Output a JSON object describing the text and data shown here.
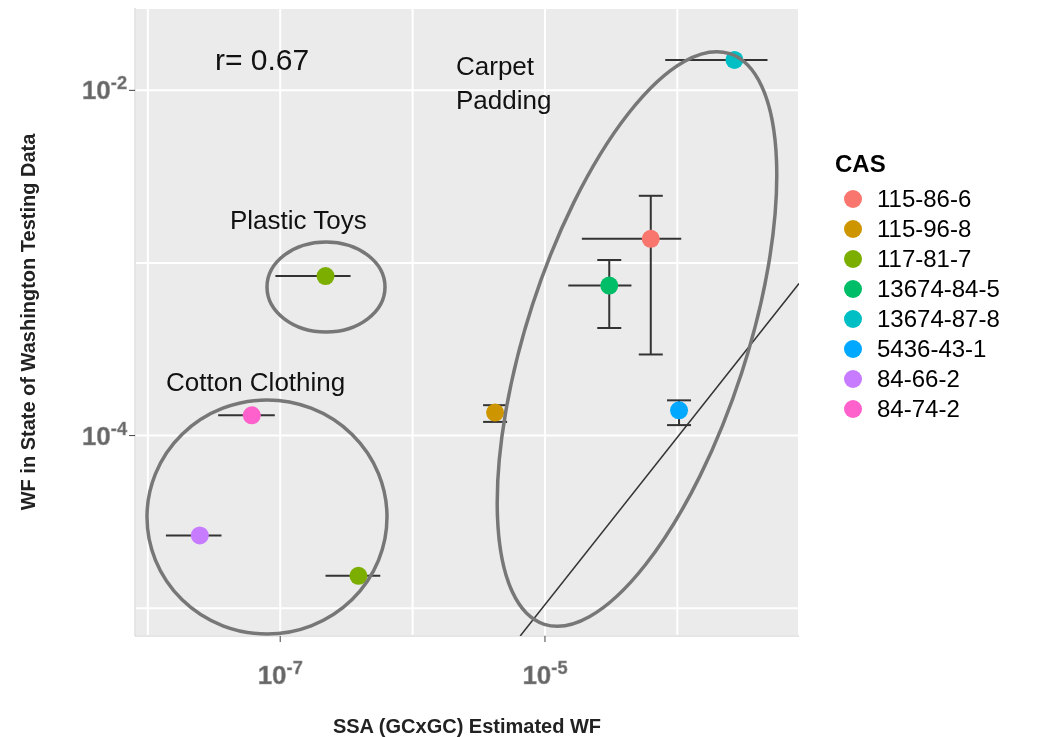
{
  "chart_data": {
    "type": "scatter",
    "xlabel": "SSA (GCxGC) Estimated WF",
    "ylabel": "WF in State of Washington Testing Data",
    "legend_title": "CAS",
    "log": "xy",
    "grid": true,
    "legend": "right",
    "marker": "circle",
    "xlim": [
      8e-09,
      0.00083
    ],
    "ylim": [
      6.9e-06,
      0.03
    ],
    "xticks": [
      {
        "value": 1e-08,
        "label": null
      },
      {
        "value": 1e-07,
        "label": "10$^{-7}$"
      },
      {
        "value": 1e-06,
        "label": null
      },
      {
        "value": 1e-05,
        "label": "10$^{-5}$"
      },
      {
        "value": 0.0001,
        "label": null
      }
    ],
    "yticks": [
      {
        "value": 1e-05,
        "label": null
      },
      {
        "value": 0.0001,
        "label": "10$^{-4}$"
      },
      {
        "value": 0.001,
        "label": null
      },
      {
        "value": 0.01,
        "label": "10$^{-2}$"
      }
    ],
    "annotations": [
      "r= 0.67",
      "Carpet Padding",
      "Plastic Toys",
      "Cotton Clothing"
    ],
    "series": [
      {
        "name": "115-86-6",
        "color": "#f8766d",
        "x": [
          6.3e-05
        ],
        "values": [
          0.00138
        ],
        "xerrors": [
          [
            1.9e-05,
            0.000107
          ]
        ],
        "errors": [
          [
            0.000295,
            0.00245
          ]
        ]
      },
      {
        "name": "115-96-8",
        "color": "#cd9600",
        "x": [
          4.2e-06
        ],
        "values": [
          0.000136
        ],
        "errors": [
          [
            0.00012,
            0.00015
          ]
        ]
      },
      {
        "name": "117-81-7",
        "color": "#7cae00",
        "x": [
          2.2e-07,
          3.9e-07
        ],
        "values": [
          0.00084,
          1.54e-05
        ],
        "xerrors": [
          [
            9.2e-08,
            3.4e-07
          ],
          [
            2.2e-07,
            5.7e-07
          ]
        ]
      },
      {
        "name": "13674-84-5",
        "color": "#00be67",
        "x": [
          3.06e-05
        ],
        "values": [
          0.00074
        ],
        "xerrors": [
          [
            1.5e-05,
            4.5e-05
          ]
        ],
        "errors": [
          [
            0.00042,
            0.00104
          ]
        ]
      },
      {
        "name": "13674-87-8",
        "color": "#00bfc4",
        "x": [
          0.00027
        ],
        "values": [
          0.015
        ],
        "xerrors": [
          [
            8.1e-05,
            0.00048
          ]
        ]
      },
      {
        "name": "5436-43-1",
        "color": "#00a9ff",
        "x": [
          0.000103
        ],
        "values": [
          0.00014
        ],
        "errors": [
          [
            0.000115,
            0.00016
          ]
        ]
      },
      {
        "name": "84-66-2",
        "color": "#c77cff",
        "x": [
          2.47e-08
        ],
        "values": [
          2.64e-05
        ],
        "xerrors": [
          [
            1.37e-08,
            3.6e-08
          ]
        ]
      },
      {
        "name": "84-74-2",
        "color": "#ff61cc",
        "x": [
          6.1e-08
        ],
        "values": [
          0.000131
        ],
        "xerrors": [
          [
            3.4e-08,
            9.1e-08
          ]
        ]
      },
      {
        "type": "line",
        "marker": "none",
        "color": "#333333",
        "x": [
          6.5e-06,
          0.00083
        ],
        "values": [
          6.9e-06,
          0.00076
        ]
      }
    ]
  }
}
